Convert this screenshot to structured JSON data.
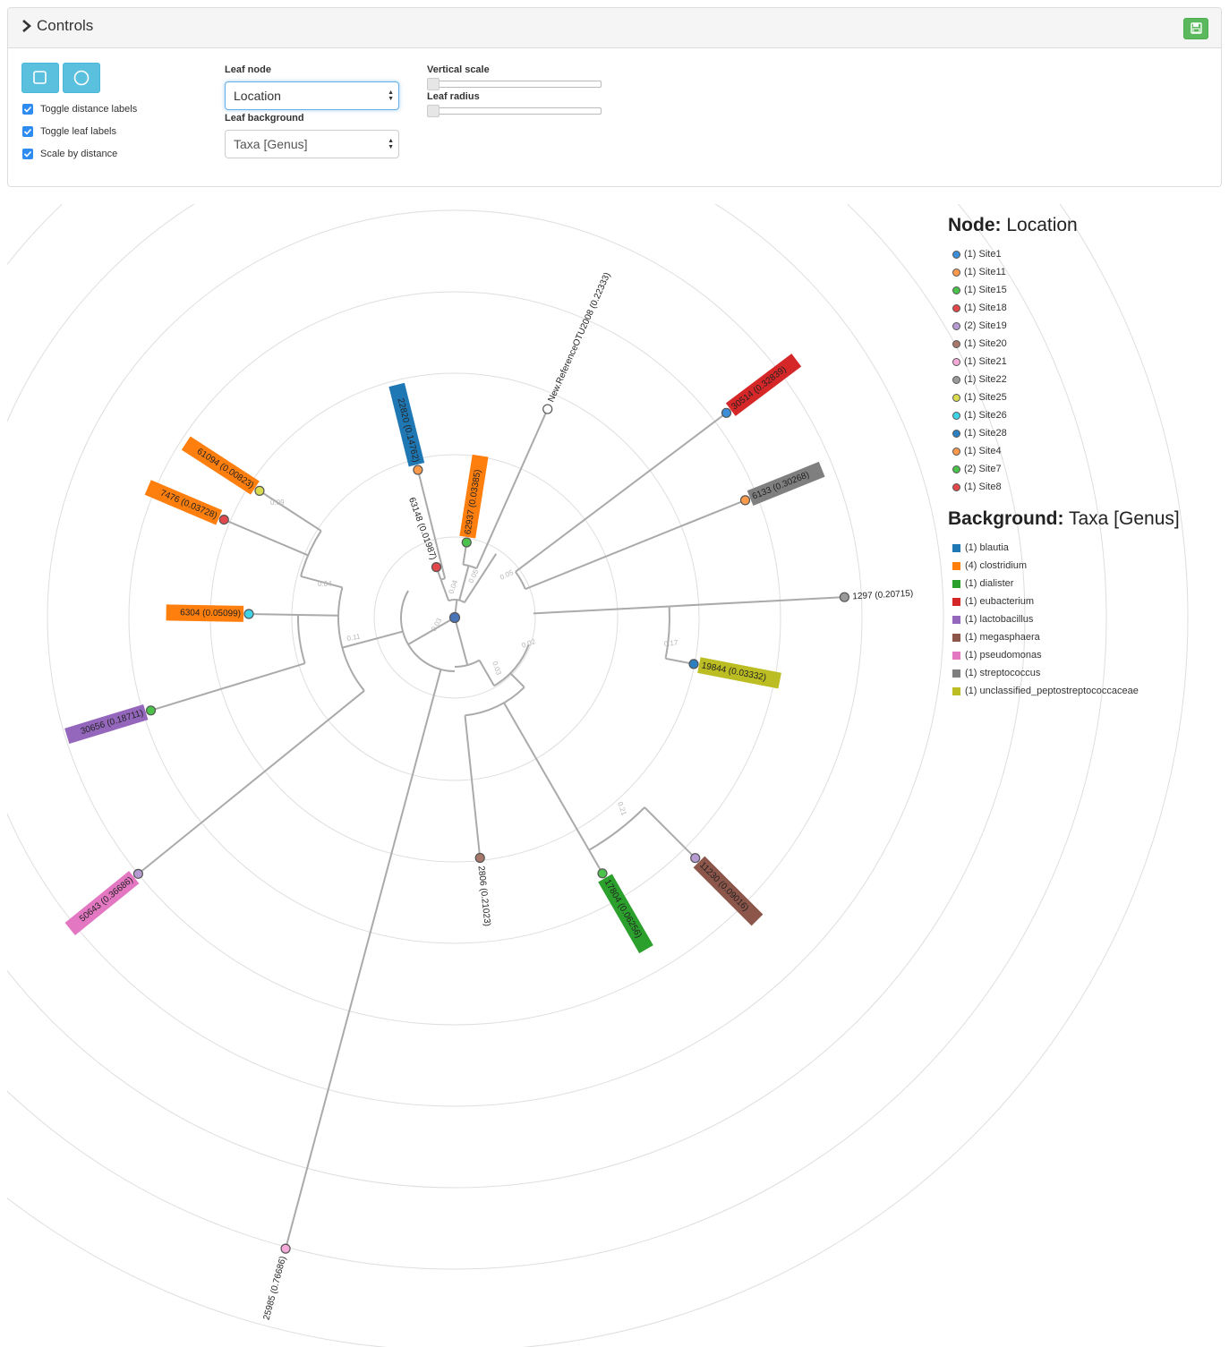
{
  "controls": {
    "title": "Controls",
    "checkboxes": [
      "Toggle distance labels",
      "Toggle leaf labels",
      "Scale by distance"
    ],
    "leaf_node_label": "Leaf node",
    "leaf_node_value": "Location",
    "leaf_background_label": "Leaf background",
    "leaf_background_value": "Taxa [Genus]",
    "vertical_scale_label": "Vertical scale",
    "leaf_radius_label": "Leaf radius",
    "vertical_scale_value": 0,
    "leaf_radius_value": 0
  },
  "legend": {
    "node_heading": "Node:",
    "node_field": "Location",
    "node_items": [
      {
        "label": "(1) Site1",
        "color": "#3c8fd6"
      },
      {
        "label": "(1) Site11",
        "color": "#fb9a4a"
      },
      {
        "label": "(1) Site15",
        "color": "#4cc24c"
      },
      {
        "label": "(1) Site18",
        "color": "#e0484b"
      },
      {
        "label": "(2) Site19",
        "color": "#b59bd2"
      },
      {
        "label": "(1) Site20",
        "color": "#a7786a"
      },
      {
        "label": "(1) Site21",
        "color": "#f4a9d8"
      },
      {
        "label": "(1) Site22",
        "color": "#9a9a9a"
      },
      {
        "label": "(1) Site25",
        "color": "#d8dc4e"
      },
      {
        "label": "(1) Site26",
        "color": "#3ed4e6"
      },
      {
        "label": "(1) Site28",
        "color": "#2c7fc0"
      },
      {
        "label": "(1) Site4",
        "color": "#fb9a4a"
      },
      {
        "label": "(2) Site7",
        "color": "#4cc24c"
      },
      {
        "label": "(1) Site8",
        "color": "#e0484b"
      }
    ],
    "bg_heading": "Background:",
    "bg_field": "Taxa [Genus]",
    "bg_items": [
      {
        "label": "(1) blautia",
        "color": "#1f77b4"
      },
      {
        "label": "(4) clostridium",
        "color": "#ff7f0e"
      },
      {
        "label": "(1) dialister",
        "color": "#2ca02c"
      },
      {
        "label": "(1) eubacterium",
        "color": "#d62728"
      },
      {
        "label": "(1) lactobacillus",
        "color": "#9467bd"
      },
      {
        "label": "(1) megasphaera",
        "color": "#8c564b"
      },
      {
        "label": "(1) pseudomonas",
        "color": "#e377c2"
      },
      {
        "label": "(1) streptococcus",
        "color": "#7f7f7f"
      },
      {
        "label": "(1) unclassified_peptostreptococcaceae",
        "color": "#bcbd22"
      }
    ]
  },
  "tree": {
    "leaves": [
      {
        "label": "63148 (0.01987)",
        "angle_deg": -110,
        "bg": null,
        "node": "#e0484b"
      },
      {
        "label": "22820 (0.14762)",
        "angle_deg": -104,
        "bg": "#1f77b4",
        "node": "#fb9a4a"
      },
      {
        "label": "62937 (0.03385)",
        "angle_deg": -81,
        "bg": "#ff7f0e",
        "node": "#4cc24c"
      },
      {
        "label": "New.ReferenceOTU2008 (0.22333)",
        "angle_deg": -66,
        "bg": null,
        "node": "#ffffff"
      },
      {
        "label": "30514 (0.32839)",
        "angle_deg": -37,
        "bg": "#d62728",
        "node": "#3c8fd6"
      },
      {
        "label": "6133 (0.30268)",
        "angle_deg": -22,
        "bg": "#7f7f7f",
        "node": "#fb9a4a"
      },
      {
        "label": "1297 (0.20715)",
        "angle_deg": -3,
        "bg": null,
        "node": "#9a9a9a"
      },
      {
        "label": "19844 (0.03332)",
        "angle_deg": 11,
        "bg": "#bcbd22",
        "node": "#2c7fc0"
      },
      {
        "label": "11230 (0.09016)",
        "angle_deg": 45,
        "bg": "#8c564b",
        "node": "#b59bd2"
      },
      {
        "label": "17804 (0.06256)",
        "angle_deg": 60,
        "bg": "#2ca02c",
        "node": "#4cc24c"
      },
      {
        "label": "2806 (0.21023)",
        "angle_deg": 84,
        "bg": null,
        "node": "#a7786a"
      },
      {
        "label": "25985 (0.76686)",
        "angle_deg": 105,
        "bg": null,
        "node": "#f4a9d8"
      },
      {
        "label": "50643 (0.36686)",
        "angle_deg": 141,
        "bg": "#e377c2",
        "node": "#b59bd2"
      },
      {
        "label": "30656 (0.18711)",
        "angle_deg": 163,
        "bg": "#9467bd",
        "node": "#4cc24c"
      },
      {
        "label": "6304 (0.05099)",
        "angle_deg": 181,
        "bg": "#ff7f0e",
        "node": "#3ed4e6"
      },
      {
        "label": "7476 (0.03728)",
        "angle_deg": 203,
        "bg": "#ff7f0e",
        "node": "#e0484b"
      },
      {
        "label": "61094 (0.00823)",
        "angle_deg": 213,
        "bg": "#ff7f0e",
        "node": "#d8dc4e"
      }
    ],
    "distance_labels": [
      "0.04",
      "0.05",
      "0.05",
      "0.03",
      "0.02",
      "0.03",
      "0.17",
      "0.21",
      "0.11",
      "0.04",
      "0.09"
    ]
  }
}
